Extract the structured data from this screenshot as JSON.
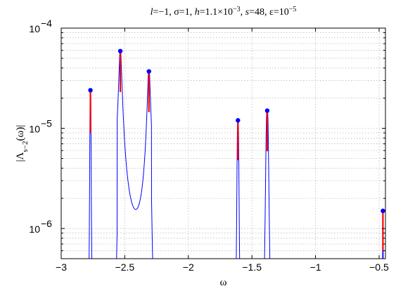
{
  "chart_data": {
    "type": "line",
    "title": "l=−1, σ=1, h=1.1×10−3, s=48, ε=10−5",
    "title_parts": [
      {
        "text": "l",
        "style": "italic"
      },
      {
        "text": "=−1, σ=1, "
      },
      {
        "text": "h",
        "style": "italic"
      },
      {
        "text": "=1.1×10"
      },
      {
        "text": "−3",
        "sup": true
      },
      {
        "text": ", "
      },
      {
        "text": "s",
        "style": "italic"
      },
      {
        "text": "=48, ε=10"
      },
      {
        "text": "−5",
        "sup": true
      }
    ],
    "xlabel": "ω",
    "ylabel": "|Λ_{s−2}(ω)|",
    "ylabel_parts": [
      {
        "text": "|Λ"
      },
      {
        "text": "s−2",
        "sub": true
      },
      {
        "text": "(ω)|"
      }
    ],
    "xlim": [
      -3,
      -0.45
    ],
    "ylim": [
      5e-07,
      0.0001
    ],
    "yscale": "log",
    "grid": true,
    "x_ticks": [
      -3,
      -2.5,
      -2,
      -1.5,
      -1,
      -0.5
    ],
    "x_tick_labels": [
      "−3",
      "−2.5",
      "−2",
      "−1.5",
      "−1",
      "−0.5"
    ],
    "y_ticks": [
      1e-06,
      1e-05,
      0.0001
    ],
    "y_tick_labels": [
      {
        "base": "10",
        "exp": "−6"
      },
      {
        "base": "10",
        "exp": "−5"
      },
      {
        "base": "10",
        "exp": "−4"
      }
    ],
    "colors": {
      "curve": "#0000ff",
      "error_bar": "#ff0000",
      "marker": "#0000ff"
    },
    "peaks": [
      {
        "x": -2.77,
        "y": 2.4e-05,
        "red_lower": 9e-06,
        "width": 0.004
      },
      {
        "x": -2.535,
        "y": 5.9e-05,
        "red_lower": 2.3e-05,
        "width": 0.009
      },
      {
        "x": -2.31,
        "y": 3.7e-05,
        "red_lower": 1.45e-05,
        "width": 0.01
      },
      {
        "x": -1.61,
        "y": 1.2e-05,
        "red_lower": 4.8e-06,
        "width": 0.006
      },
      {
        "x": -1.38,
        "y": 1.5e-05,
        "red_lower": 5.9e-06,
        "width": 0.009
      },
      {
        "x": -0.47,
        "y": 1.5e-06,
        "red_lower": 6e-07,
        "width": 0.002
      }
    ],
    "valley_bump": {
      "x": -2.41,
      "y": 5.9e-07,
      "width": 0.11
    }
  }
}
